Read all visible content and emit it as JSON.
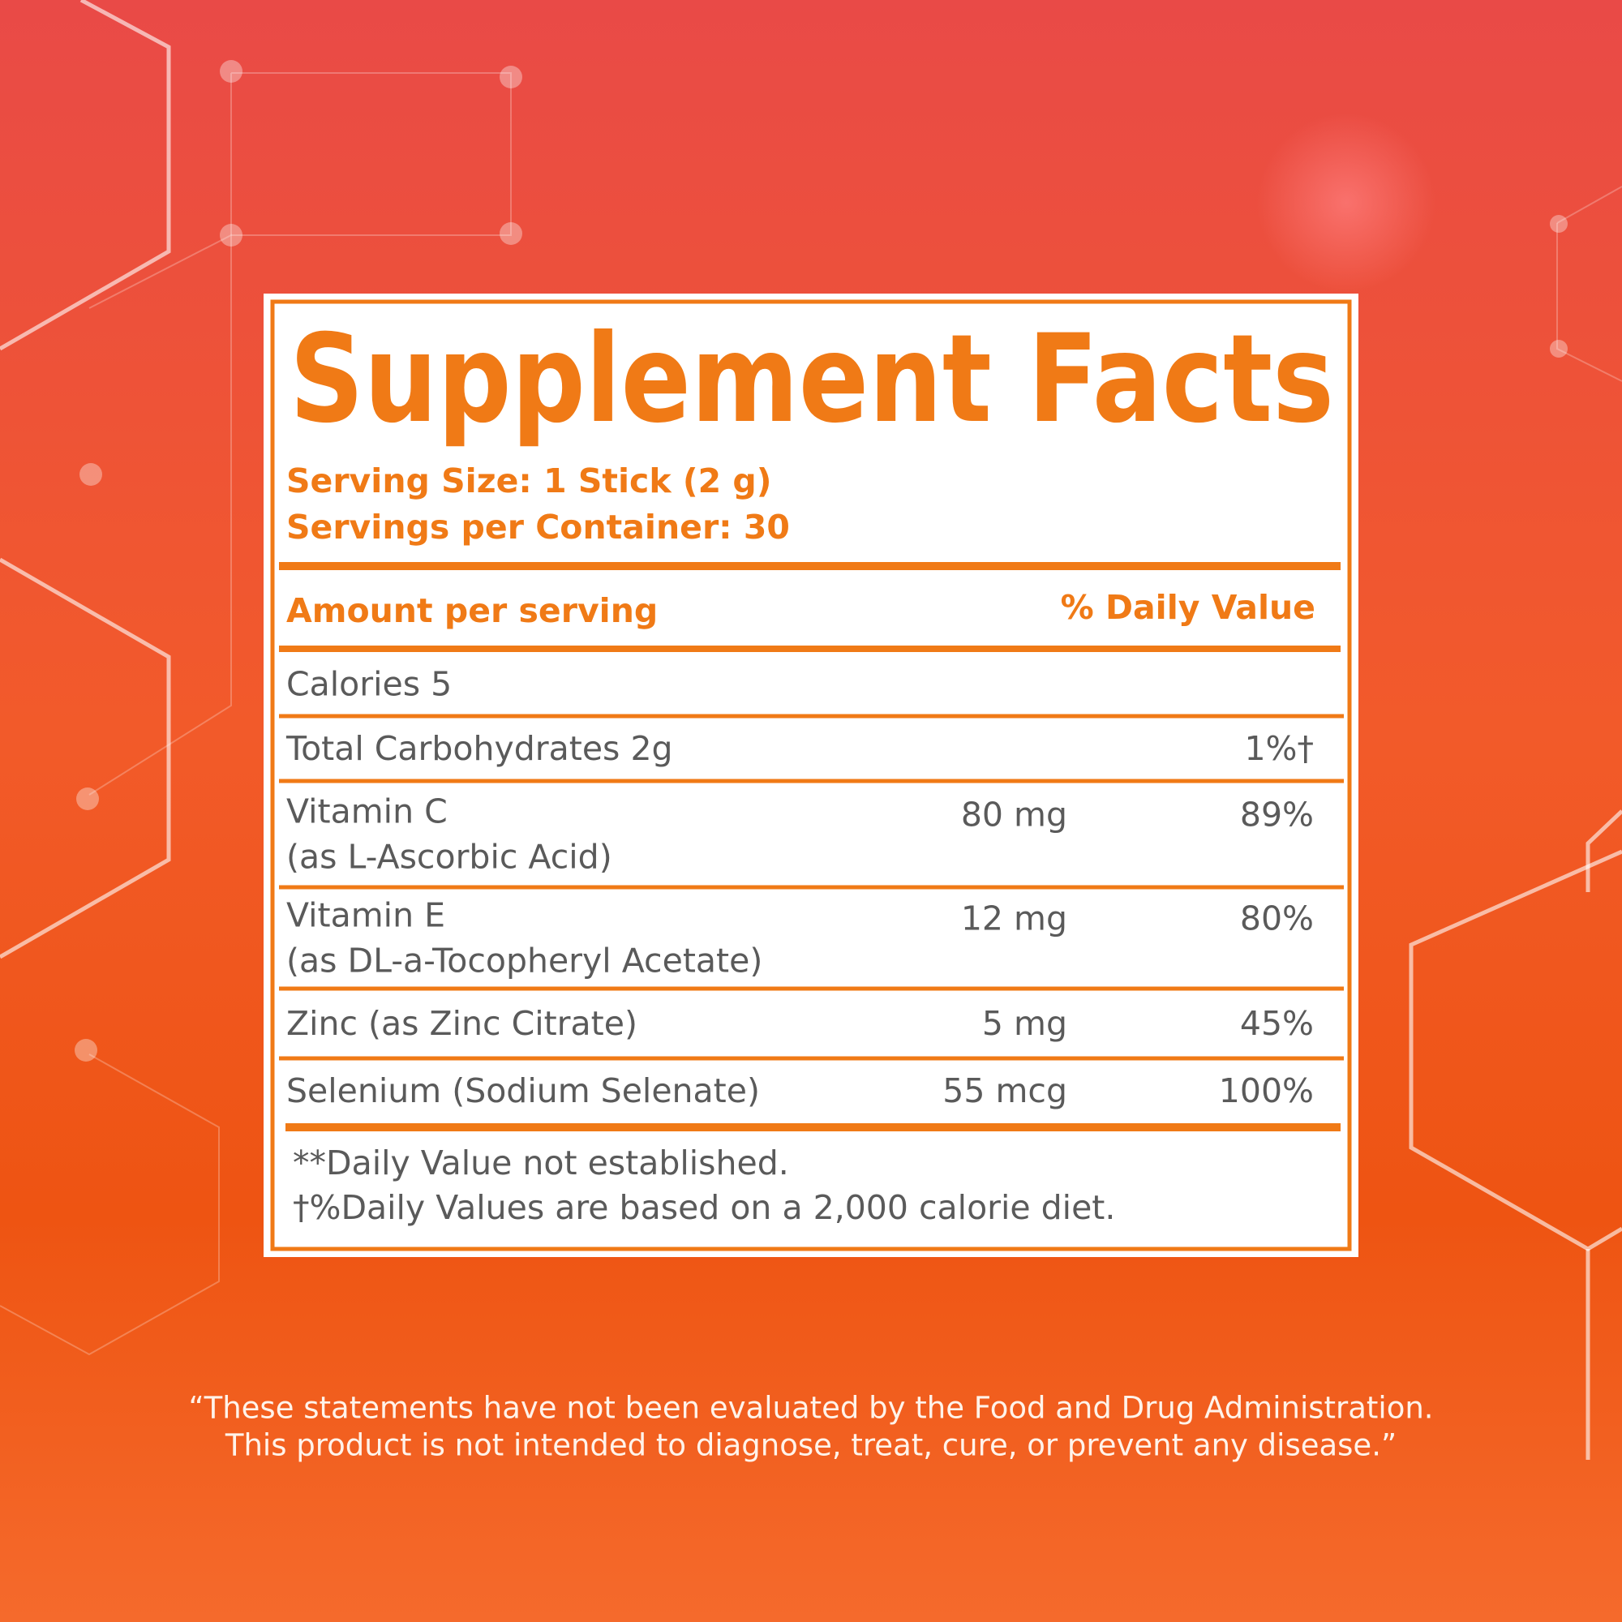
{
  "label": {
    "title": "Supplement Facts",
    "serving_size": "Serving Size: 1 Stick (2 g)",
    "servings_per_container": "Servings per Container: 30",
    "header": {
      "amount": "Amount per serving",
      "daily_value": "% Daily Value"
    },
    "rows": [
      {
        "name": [
          "Calories 5"
        ]
      },
      {
        "name": [
          "Total Carbohydrates 2g"
        ],
        "daily_value": "1%†"
      },
      {
        "name": [
          "Vitamin C",
          "(as L-Ascorbic Acid)"
        ],
        "amount": "80 mg",
        "daily_value": "89%"
      },
      {
        "name": [
          "Vitamin E",
          "(as DL-a-Tocopheryl Acetate)"
        ],
        "amount": "12 mg",
        "daily_value": "80%"
      },
      {
        "name": [
          "Zinc (as Zinc Citrate)"
        ],
        "amount": "5 mg",
        "daily_value": "45%"
      },
      {
        "name": [
          "Selenium (Sodium Selenate)"
        ],
        "amount": "55 mcg",
        "daily_value": "100%"
      }
    ],
    "footnotes": [
      "**Daily Value not established.",
      "†%Daily Values are based on a 2,000 calorie diet."
    ]
  },
  "disclaimer": [
    "“These statements have not been evaluated by the Food and Drug Administration.",
    "This product is not intended to diagnose, treat, cure, or prevent any disease.”"
  ]
}
